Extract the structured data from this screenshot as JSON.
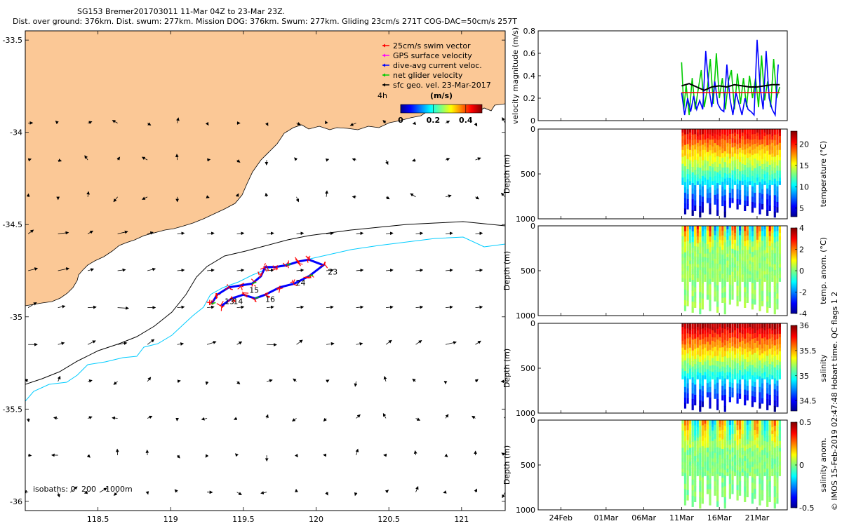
{
  "title": {
    "line1": "SG153 Bremer201703011 11-Mar 04Z to 23-Mar 23Z.",
    "line2": "Dist. over ground: 376km. Dist. swum: 277km. Mission DOG: 376km. Swum: 277km. Gliding 23cm/s 271T COG-DAC=50cm/s 257T"
  },
  "footer": "© IMOS 15-Feb-2019 02:47:48 Hobart time. QC flags 1  2",
  "colors": {
    "land": "#fbc896",
    "swim_vector": "#ff0000",
    "gps_velocity": "#ff00ff",
    "dac_velocity": "#0000ff",
    "net_velocity": "#00cc00",
    "geo_velocity": "#000000",
    "isobath_200": "#000000",
    "isobath_1000": "#00ccff"
  },
  "chart_data": [
    {
      "type": "map",
      "name": "glider-track-map",
      "xlim": [
        118.0,
        121.3
      ],
      "ylim": [
        -36.05,
        -33.45
      ],
      "xticks": [
        118.5,
        119,
        119.5,
        120,
        120.5,
        121
      ],
      "yticks": [
        -33.5,
        -34,
        -34.5,
        -35,
        -35.5,
        -36
      ],
      "xtick_labels": [
        "118.5",
        "119",
        "119.5",
        "120",
        "120.5",
        "121"
      ],
      "ytick_labels": [
        "-33.5",
        "-34",
        "-34.5",
        "-35",
        "-35.5",
        "-36"
      ],
      "legend": [
        {
          "label": "25cm/s swim vector",
          "color": "#ff0000"
        },
        {
          "label": "GPS surface velocity",
          "color": "#ff00ff"
        },
        {
          "label": "dive-avg current veloc.",
          "color": "#0000ff"
        },
        {
          "label": "net glider velocity",
          "color": "#00cc00"
        },
        {
          "label": "sfc geo. vel. 23-Mar-2017",
          "color": "#000000"
        }
      ],
      "legend_placement": "top-right",
      "colorbar": {
        "label": "(m/s)",
        "side_label": "4h",
        "ticks": [
          "0",
          "0.2",
          "0.4"
        ],
        "range": [
          0,
          0.5
        ]
      },
      "isobath_label": "isobaths: 0",
      "isobath_values": [
        "200",
        "1000m"
      ],
      "day_labels": [
        {
          "text": "13",
          "lon": 119.37,
          "lat": -34.93
        },
        {
          "text": "14",
          "lon": 119.43,
          "lat": -34.93
        },
        {
          "text": "15",
          "lon": 119.54,
          "lat": -34.87
        },
        {
          "text": "16",
          "lon": 119.65,
          "lat": -34.92
        },
        {
          "text": "23",
          "lon": 120.08,
          "lat": -34.77
        },
        {
          "text": "24",
          "lon": 119.86,
          "lat": -34.83
        }
      ],
      "track": [
        [
          119.28,
          -34.93
        ],
        [
          119.32,
          -34.88
        ],
        [
          119.4,
          -34.84
        ],
        [
          119.48,
          -34.83
        ],
        [
          119.56,
          -34.82
        ],
        [
          119.62,
          -34.78
        ],
        [
          119.65,
          -34.73
        ],
        [
          119.72,
          -34.73
        ],
        [
          119.8,
          -34.72
        ],
        [
          119.88,
          -34.7
        ],
        [
          119.95,
          -34.69
        ],
        [
          120.05,
          -34.72
        ],
        [
          119.95,
          -34.78
        ],
        [
          119.85,
          -34.82
        ],
        [
          119.75,
          -34.84
        ],
        [
          119.65,
          -34.88
        ],
        [
          119.58,
          -34.9
        ],
        [
          119.5,
          -34.88
        ],
        [
          119.42,
          -34.9
        ],
        [
          119.35,
          -34.94
        ]
      ]
    },
    {
      "type": "line",
      "name": "velocity-magnitude",
      "ylabel": "velocity magnitude (m/s)",
      "ylim": [
        0,
        0.8
      ],
      "yticks": [
        "0",
        "0.2",
        "0.4",
        "0.6",
        "0.8"
      ],
      "series": [
        {
          "color": "#00cc00",
          "x": [
            11.0,
            11.3,
            11.6,
            12.0,
            12.4,
            12.8,
            13.2,
            13.6,
            14.0,
            14.4,
            14.8,
            15.2,
            15.6,
            16.0,
            16.4,
            16.8,
            17.2,
            17.6,
            18.0,
            18.4,
            18.8,
            19.2,
            19.6,
            20.0,
            20.4,
            20.8,
            21.2,
            21.6,
            22.0,
            22.4,
            22.8,
            23.2,
            23.6,
            24.0
          ],
          "values": [
            0.52,
            0.1,
            0.32,
            0.05,
            0.38,
            0.1,
            0.28,
            0.45,
            0.12,
            0.28,
            0.55,
            0.15,
            0.6,
            0.2,
            0.38,
            0.1,
            0.35,
            0.45,
            0.1,
            0.42,
            0.15,
            0.38,
            0.12,
            0.4,
            0.2,
            0.38,
            0.12,
            0.58,
            0.18,
            0.35,
            0.12,
            0.55,
            0.2,
            0.3
          ]
        },
        {
          "color": "#0000ff",
          "x": [
            11.0,
            11.4,
            11.8,
            12.2,
            12.6,
            13.0,
            13.4,
            13.8,
            14.2,
            14.6,
            15.0,
            15.4,
            15.8,
            16.2,
            16.6,
            17.0,
            17.4,
            17.8,
            18.2,
            18.6,
            19.0,
            19.4,
            19.8,
            20.2,
            20.6,
            21.0,
            21.4,
            21.8,
            22.2,
            22.6,
            23.0,
            23.4,
            23.8
          ],
          "values": [
            0.25,
            0.05,
            0.2,
            0.08,
            0.22,
            0.1,
            0.18,
            0.1,
            0.62,
            0.3,
            0.12,
            0.35,
            0.15,
            0.1,
            0.08,
            0.5,
            0.2,
            0.05,
            0.25,
            0.15,
            0.05,
            0.2,
            0.1,
            0.08,
            0.05,
            0.72,
            0.3,
            0.1,
            0.62,
            0.2,
            0.1,
            0.05,
            0.5
          ]
        },
        {
          "color": "#000000",
          "x": [
            11.0,
            12.0,
            13.0,
            14.0,
            15.0,
            16.0,
            17.0,
            18.0,
            19.0,
            20.0,
            21.0,
            22.0,
            23.0,
            24.0
          ],
          "values": [
            0.31,
            0.33,
            0.3,
            0.27,
            0.3,
            0.31,
            0.3,
            0.32,
            0.31,
            0.3,
            0.3,
            0.31,
            0.32,
            0.32
          ]
        },
        {
          "color": "#ff0000",
          "x": [
            11.0,
            12.0,
            13.0,
            14.0,
            15.0,
            16.0,
            17.0,
            18.0,
            19.0,
            20.0,
            21.0,
            22.0,
            23.0,
            24.0
          ],
          "values": [
            0.25,
            0.25,
            0.25,
            0.25,
            0.25,
            0.25,
            0.25,
            0.25,
            0.25,
            0.25,
            0.25,
            0.25,
            0.25,
            0.25
          ]
        }
      ]
    },
    {
      "type": "heatmap",
      "name": "temperature",
      "ylabel": "Depth (m)",
      "yticks": [
        "0",
        "500",
        "1000"
      ],
      "colorbar_label": "temperature (°C)",
      "colorbar_ticks": [
        "20",
        "15",
        "10",
        "5"
      ],
      "crange": [
        3,
        23
      ]
    },
    {
      "type": "heatmap",
      "name": "temperature-anomaly",
      "ylabel": "Depth (m)",
      "yticks": [
        "0",
        "500",
        "1000"
      ],
      "colorbar_label": "temp. anom. (°C)",
      "colorbar_ticks": [
        "4",
        "2",
        "0",
        "-2",
        "-4"
      ],
      "crange": [
        -4,
        4
      ]
    },
    {
      "type": "heatmap",
      "name": "salinity",
      "ylabel": "Depth (m)",
      "yticks": [
        "0",
        "500",
        "1000"
      ],
      "colorbar_label": "salinity",
      "colorbar_ticks": [
        "36",
        "35.5",
        "35",
        "34.5"
      ],
      "crange": [
        34.3,
        36
      ]
    },
    {
      "type": "heatmap",
      "name": "salinity-anomaly",
      "ylabel": "Depth (m)",
      "yticks": [
        "0",
        "500",
        "1000"
      ],
      "colorbar_label": "salinity anom.",
      "colorbar_ticks": [
        "0.5",
        "0",
        "-0.5"
      ],
      "crange": [
        -0.5,
        0.5
      ]
    }
  ],
  "time_axis": {
    "ticks": [
      "24Feb",
      "01Mar",
      "06Mar",
      "11Mar",
      "16Mar",
      "21Mar"
    ],
    "tick_days": [
      -5,
      1,
      6,
      11,
      16,
      21
    ],
    "range_days": [
      -8,
      25
    ]
  }
}
